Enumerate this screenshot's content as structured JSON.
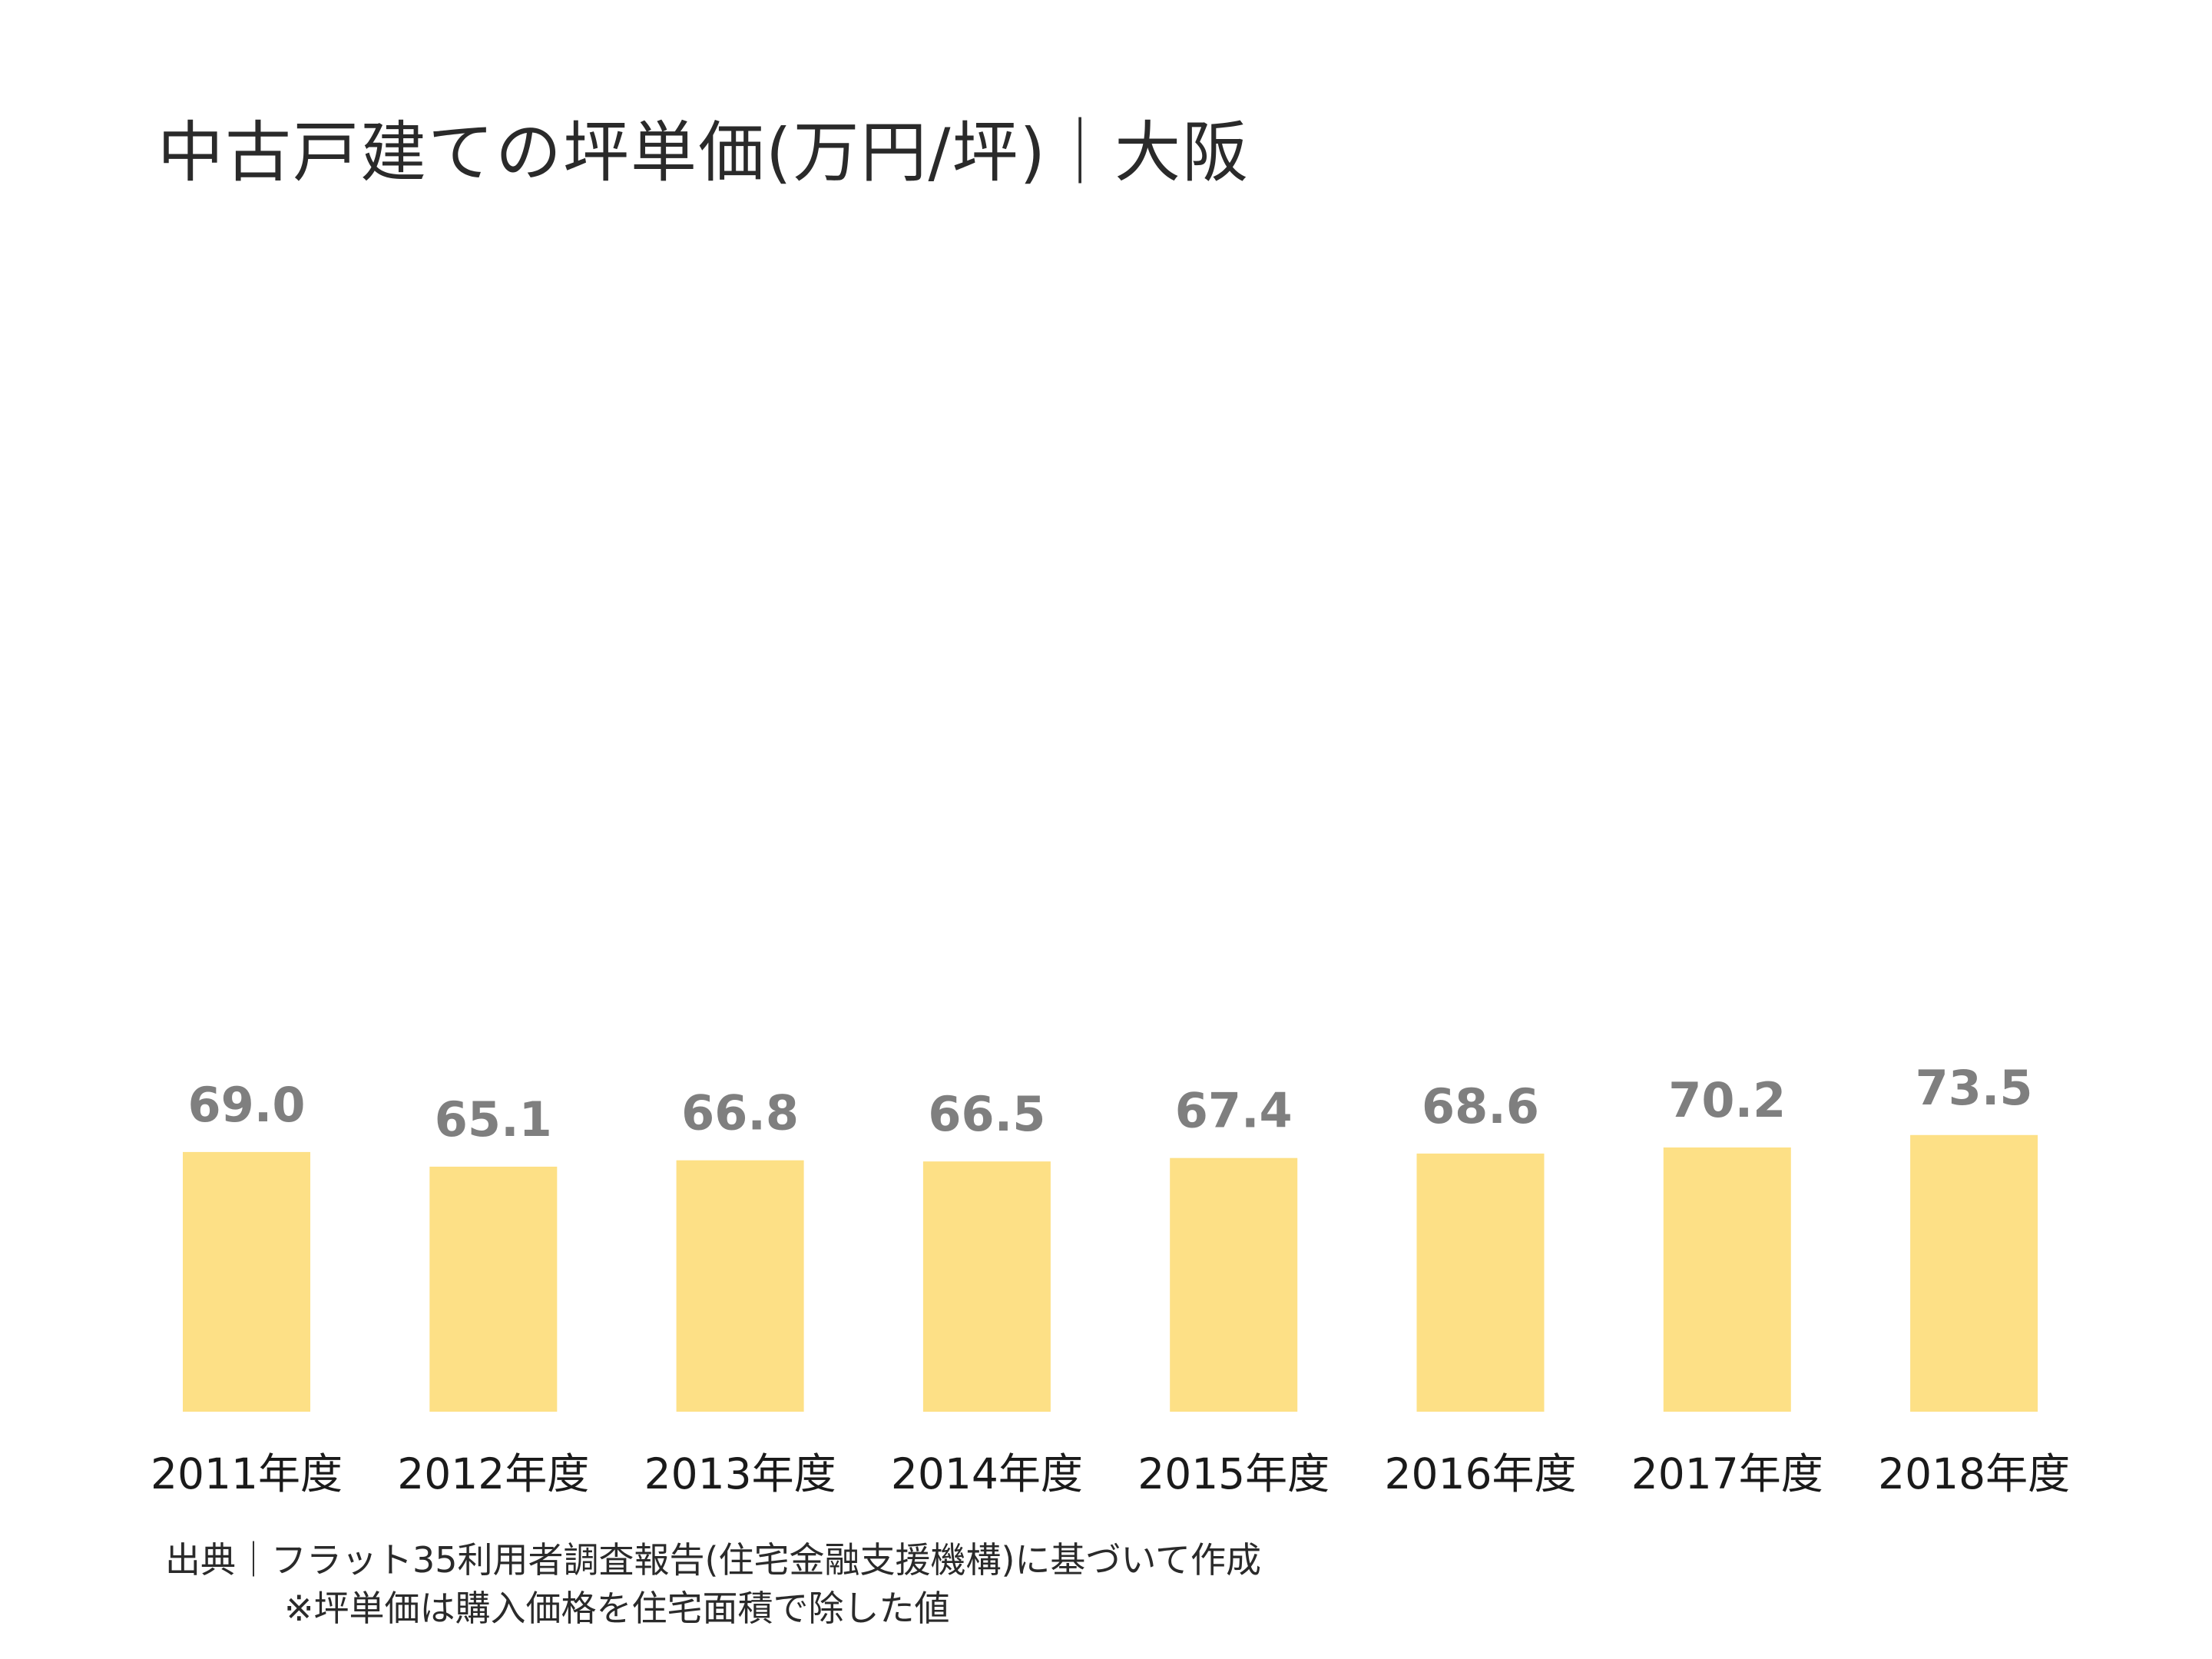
{
  "chart_data": {
    "type": "bar",
    "title": "中古戸建ての坪単価(万円/坪)｜大阪",
    "categories": [
      "2011年度",
      "2012年度",
      "2013年度",
      "2014年度",
      "2015年度",
      "2016年度",
      "2017年度",
      "2018年度"
    ],
    "values": [
      69.0,
      65.1,
      66.8,
      66.5,
      67.4,
      68.6,
      70.2,
      73.5
    ],
    "value_labels": [
      "69.0",
      "65.1",
      "66.8",
      "66.5",
      "67.4",
      "68.6",
      "70.2",
      "73.5"
    ],
    "xlabel": "",
    "ylabel": "",
    "ylim": [
      0,
      73.5
    ],
    "grid": false,
    "bar_color": "#fde086",
    "value_label_color": "#7f7f7f"
  },
  "footer": {
    "source": "出典｜フラット35利用者調査報告(住宅金融支援機構)に基づいて作成",
    "note": "※坪単価は購入価格を住宅面積で除した値"
  }
}
